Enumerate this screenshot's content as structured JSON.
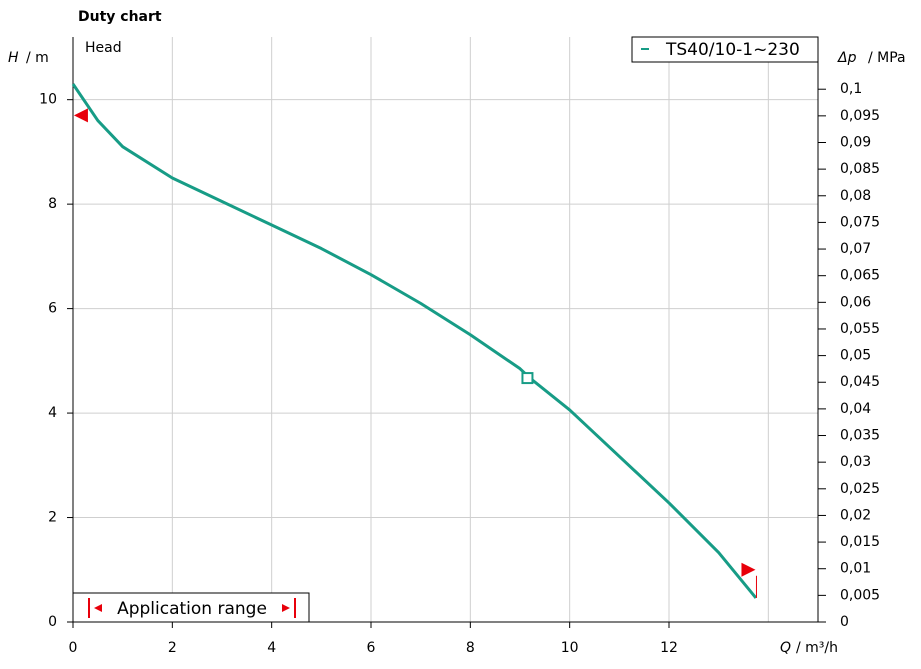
{
  "chart_data": {
    "type": "line",
    "title": "Duty chart",
    "ylabel_symbol": "H",
    "ylabel_unit": "/ m",
    "y2label_symbol": "Δp",
    "y2label_unit": "/ MPa",
    "xlabel_symbol": "Q",
    "xlabel_unit": "/ m³/h",
    "annotation": "Head",
    "range_label": "Application range",
    "xlim": [
      0,
      15
    ],
    "xticks": [
      0,
      2,
      4,
      6,
      8,
      10,
      12
    ],
    "xgrid": [
      2,
      4,
      6,
      8,
      10,
      12,
      14
    ],
    "ylim": [
      0,
      11.2
    ],
    "yticks": [
      0,
      2,
      4,
      6,
      8,
      10
    ],
    "y2lim": [
      0,
      0.1098
    ],
    "y2ticks": [
      0,
      {
        "value": 0.005,
        "label": "0,005"
      },
      {
        "value": 0.01,
        "label": "0,01"
      },
      {
        "value": 0.015,
        "label": "0,015"
      },
      {
        "value": 0.02,
        "label": "0,02"
      },
      {
        "value": 0.025,
        "label": "0,025"
      },
      {
        "value": 0.03,
        "label": "0,03"
      },
      {
        "value": 0.035,
        "label": "0,035"
      },
      {
        "value": 0.04,
        "label": "0,04"
      },
      {
        "value": 0.045,
        "label": "0,045"
      },
      {
        "value": 0.05,
        "label": "0,05"
      },
      {
        "value": 0.055,
        "label": "0,055"
      },
      {
        "value": 0.06,
        "label": "0,06"
      },
      {
        "value": 0.065,
        "label": "0,065"
      },
      {
        "value": 0.07,
        "label": "0,07"
      },
      {
        "value": 0.075,
        "label": "0,075"
      },
      {
        "value": 0.08,
        "label": "0,08"
      },
      {
        "value": 0.085,
        "label": "0,085"
      },
      {
        "value": 0.09,
        "label": "0,09"
      },
      {
        "value": 0.095,
        "label": "0,095"
      },
      {
        "value": 0.1,
        "label": "0,1"
      }
    ],
    "grid": true,
    "legend_position": "top-right",
    "series": [
      {
        "name": "TS40/10-1~230",
        "color": "#179c86",
        "x": [
          0,
          0.5,
          1,
          2,
          3,
          4,
          5,
          6,
          7,
          8,
          9,
          9.2,
          10,
          11,
          12,
          13,
          13.75
        ],
        "values": [
          10.3,
          9.6,
          9.1,
          8.5,
          8.05,
          7.6,
          7.15,
          6.65,
          6.1,
          5.5,
          4.85,
          4.67,
          4.06,
          3.17,
          2.28,
          1.33,
          0.46
        ]
      }
    ],
    "operating_point": {
      "x": 9.15,
      "y": 4.67
    },
    "range_markers": [
      {
        "x": 0.16,
        "y": 9.7
      },
      {
        "x": 13.6,
        "y": 1.0
      }
    ],
    "range_color": "#e8000b"
  }
}
